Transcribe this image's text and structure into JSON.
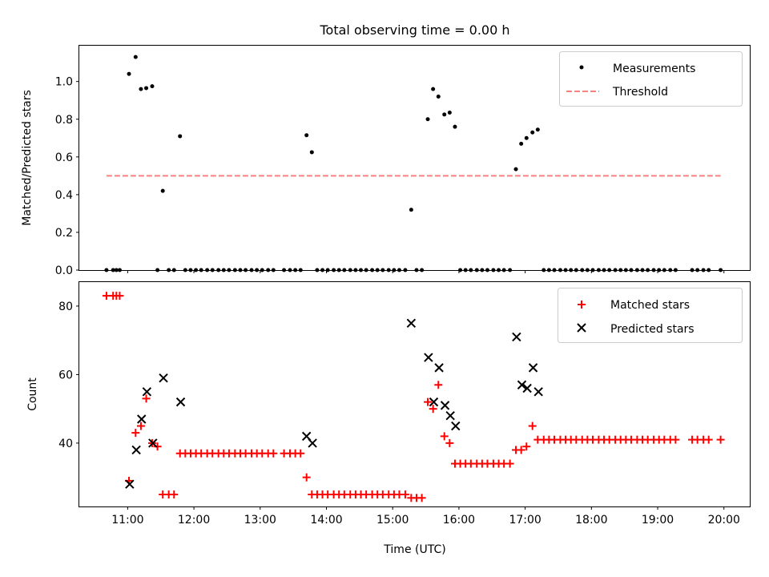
{
  "chart_data": [
    {
      "type": "scatter",
      "title": "Total observing time = 0.00 h",
      "xlabel": "",
      "ylabel": "Matched/Predicted stars",
      "ylim": [
        0,
        1.19
      ],
      "yticks": [
        0.0,
        0.2,
        0.4,
        0.6,
        0.8,
        1.0
      ],
      "ytick_labels": [
        "0.0",
        "0.2",
        "0.4",
        "0.6",
        "0.8",
        "1.0"
      ],
      "xlim": [
        10.27,
        20.39
      ],
      "xticks": [
        11,
        12,
        13,
        14,
        15,
        16,
        17,
        18,
        19,
        20
      ],
      "x_unit": "hours UTC",
      "legend_position": "top-right",
      "series": [
        {
          "name": "Measurements",
          "marker": "dot",
          "color": "#000000",
          "points": [
            [
              10.68,
              0
            ],
            [
              10.78,
              0
            ],
            [
              10.83,
              0
            ],
            [
              10.88,
              0
            ],
            [
              11.02,
              1.04
            ],
            [
              11.12,
              1.13
            ],
            [
              11.2,
              0.96
            ],
            [
              11.28,
              0.965
            ],
            [
              11.37,
              0.975
            ],
            [
              11.45,
              0
            ],
            [
              11.53,
              0.42
            ],
            [
              11.62,
              0
            ],
            [
              11.7,
              0
            ],
            [
              11.79,
              0.71
            ],
            [
              11.87,
              0
            ],
            [
              11.95,
              0
            ],
            [
              12.03,
              0
            ],
            [
              12.11,
              0
            ],
            [
              12.2,
              0
            ],
            [
              12.28,
              0
            ],
            [
              12.37,
              0
            ],
            [
              12.45,
              0
            ],
            [
              12.53,
              0
            ],
            [
              12.62,
              0
            ],
            [
              12.7,
              0
            ],
            [
              12.78,
              0
            ],
            [
              12.87,
              0
            ],
            [
              12.95,
              0
            ],
            [
              13.03,
              0
            ],
            [
              13.12,
              0
            ],
            [
              13.2,
              0
            ],
            [
              13.36,
              0
            ],
            [
              13.45,
              0
            ],
            [
              13.53,
              0
            ],
            [
              13.61,
              0
            ],
            [
              13.7,
              0.715
            ],
            [
              13.78,
              0.625
            ],
            [
              13.86,
              0
            ],
            [
              13.94,
              0
            ],
            [
              14.02,
              0
            ],
            [
              14.11,
              0
            ],
            [
              14.19,
              0
            ],
            [
              14.27,
              0
            ],
            [
              14.36,
              0
            ],
            [
              14.44,
              0
            ],
            [
              14.52,
              0
            ],
            [
              14.6,
              0
            ],
            [
              14.69,
              0
            ],
            [
              14.77,
              0
            ],
            [
              14.85,
              0
            ],
            [
              14.94,
              0
            ],
            [
              15.02,
              0
            ],
            [
              15.1,
              0
            ],
            [
              15.19,
              0
            ],
            [
              15.28,
              0.32
            ],
            [
              15.36,
              0
            ],
            [
              15.44,
              0
            ],
            [
              15.53,
              0.8
            ],
            [
              15.61,
              0.96
            ],
            [
              15.69,
              0.92
            ],
            [
              15.78,
              0.825
            ],
            [
              15.86,
              0.835
            ],
            [
              15.94,
              0.76
            ],
            [
              16.02,
              0
            ],
            [
              16.1,
              0
            ],
            [
              16.18,
              0
            ],
            [
              16.27,
              0
            ],
            [
              16.35,
              0
            ],
            [
              16.43,
              0
            ],
            [
              16.52,
              0
            ],
            [
              16.6,
              0
            ],
            [
              16.68,
              0
            ],
            [
              16.77,
              0
            ],
            [
              16.86,
              0.535
            ],
            [
              16.94,
              0.67
            ],
            [
              17.02,
              0.7
            ],
            [
              17.11,
              0.73
            ],
            [
              17.19,
              0.745
            ],
            [
              17.28,
              0
            ],
            [
              17.36,
              0
            ],
            [
              17.44,
              0
            ],
            [
              17.53,
              0
            ],
            [
              17.61,
              0
            ],
            [
              17.69,
              0
            ],
            [
              17.77,
              0
            ],
            [
              17.86,
              0
            ],
            [
              17.94,
              0
            ],
            [
              18.02,
              0
            ],
            [
              18.11,
              0
            ],
            [
              18.19,
              0
            ],
            [
              18.27,
              0
            ],
            [
              18.36,
              0
            ],
            [
              18.44,
              0
            ],
            [
              18.52,
              0
            ],
            [
              18.6,
              0
            ],
            [
              18.69,
              0
            ],
            [
              18.77,
              0
            ],
            [
              18.85,
              0
            ],
            [
              18.94,
              0
            ],
            [
              19.02,
              0
            ],
            [
              19.1,
              0
            ],
            [
              19.19,
              0
            ],
            [
              19.27,
              0
            ],
            [
              19.52,
              0
            ],
            [
              19.6,
              0
            ],
            [
              19.69,
              0
            ],
            [
              19.77,
              0
            ],
            [
              19.95,
              0
            ]
          ]
        },
        {
          "name": "Threshold",
          "line": "dashed",
          "color": "#ff7f7f",
          "x": [
            10.68,
            19.95
          ],
          "y": [
            0.5,
            0.5
          ]
        }
      ]
    },
    {
      "type": "scatter",
      "xlabel": "Time (UTC)",
      "ylabel": "Count",
      "ylim": [
        21.5,
        87
      ],
      "yticks": [
        40,
        60,
        80
      ],
      "ytick_labels": [
        "40",
        "60",
        "80"
      ],
      "xlim": [
        10.27,
        20.39
      ],
      "xticks": [
        11,
        12,
        13,
        14,
        15,
        16,
        17,
        18,
        19,
        20
      ],
      "xtick_labels": [
        "11:00",
        "12:00",
        "13:00",
        "14:00",
        "15:00",
        "16:00",
        "17:00",
        "18:00",
        "19:00",
        "20:00"
      ],
      "legend_position": "top-right",
      "series": [
        {
          "name": "Matched stars",
          "marker": "plus",
          "color": "#ff0000",
          "points": [
            [
              10.68,
              83
            ],
            [
              10.78,
              83
            ],
            [
              10.83,
              83
            ],
            [
              10.88,
              83
            ],
            [
              11.02,
              29
            ],
            [
              11.12,
              43
            ],
            [
              11.2,
              45
            ],
            [
              11.28,
              53
            ],
            [
              11.37,
              40
            ],
            [
              11.45,
              39
            ],
            [
              11.53,
              25
            ],
            [
              11.62,
              25
            ],
            [
              11.7,
              25
            ],
            [
              11.79,
              37
            ],
            [
              11.87,
              37
            ],
            [
              11.95,
              37
            ],
            [
              12.03,
              37
            ],
            [
              12.11,
              37
            ],
            [
              12.2,
              37
            ],
            [
              12.28,
              37
            ],
            [
              12.37,
              37
            ],
            [
              12.45,
              37
            ],
            [
              12.53,
              37
            ],
            [
              12.62,
              37
            ],
            [
              12.7,
              37
            ],
            [
              12.78,
              37
            ],
            [
              12.87,
              37
            ],
            [
              12.95,
              37
            ],
            [
              13.03,
              37
            ],
            [
              13.12,
              37
            ],
            [
              13.2,
              37
            ],
            [
              13.36,
              37
            ],
            [
              13.45,
              37
            ],
            [
              13.53,
              37
            ],
            [
              13.61,
              37
            ],
            [
              13.7,
              30
            ],
            [
              13.78,
              25
            ],
            [
              13.86,
              25
            ],
            [
              13.94,
              25
            ],
            [
              14.02,
              25
            ],
            [
              14.11,
              25
            ],
            [
              14.19,
              25
            ],
            [
              14.27,
              25
            ],
            [
              14.36,
              25
            ],
            [
              14.44,
              25
            ],
            [
              14.52,
              25
            ],
            [
              14.6,
              25
            ],
            [
              14.69,
              25
            ],
            [
              14.77,
              25
            ],
            [
              14.85,
              25
            ],
            [
              14.94,
              25
            ],
            [
              15.02,
              25
            ],
            [
              15.1,
              25
            ],
            [
              15.19,
              25
            ],
            [
              15.28,
              24
            ],
            [
              15.36,
              24
            ],
            [
              15.44,
              24
            ],
            [
              15.53,
              52
            ],
            [
              15.61,
              50
            ],
            [
              15.69,
              57
            ],
            [
              15.78,
              42
            ],
            [
              15.86,
              40
            ],
            [
              15.94,
              34
            ],
            [
              16.02,
              34
            ],
            [
              16.1,
              34
            ],
            [
              16.18,
              34
            ],
            [
              16.27,
              34
            ],
            [
              16.35,
              34
            ],
            [
              16.43,
              34
            ],
            [
              16.52,
              34
            ],
            [
              16.6,
              34
            ],
            [
              16.68,
              34
            ],
            [
              16.77,
              34
            ],
            [
              16.86,
              38
            ],
            [
              16.94,
              38
            ],
            [
              17.02,
              39
            ],
            [
              17.11,
              45
            ],
            [
              17.19,
              41
            ],
            [
              17.28,
              41
            ],
            [
              17.36,
              41
            ],
            [
              17.44,
              41
            ],
            [
              17.53,
              41
            ],
            [
              17.61,
              41
            ],
            [
              17.69,
              41
            ],
            [
              17.77,
              41
            ],
            [
              17.86,
              41
            ],
            [
              17.94,
              41
            ],
            [
              18.02,
              41
            ],
            [
              18.11,
              41
            ],
            [
              18.19,
              41
            ],
            [
              18.27,
              41
            ],
            [
              18.36,
              41
            ],
            [
              18.44,
              41
            ],
            [
              18.52,
              41
            ],
            [
              18.6,
              41
            ],
            [
              18.69,
              41
            ],
            [
              18.77,
              41
            ],
            [
              18.85,
              41
            ],
            [
              18.94,
              41
            ],
            [
              19.02,
              41
            ],
            [
              19.1,
              41
            ],
            [
              19.19,
              41
            ],
            [
              19.27,
              41
            ],
            [
              19.52,
              41
            ],
            [
              19.6,
              41
            ],
            [
              19.69,
              41
            ],
            [
              19.77,
              41
            ],
            [
              19.95,
              41
            ]
          ]
        },
        {
          "name": "Predicted stars",
          "marker": "x",
          "color": "#000000",
          "points": [
            [
              11.03,
              28
            ],
            [
              11.13,
              38
            ],
            [
              11.21,
              47
            ],
            [
              11.29,
              55
            ],
            [
              11.38,
              40
            ],
            [
              11.54,
              59
            ],
            [
              11.8,
              52
            ],
            [
              13.7,
              42
            ],
            [
              13.79,
              40
            ],
            [
              15.28,
              75
            ],
            [
              15.54,
              65
            ],
            [
              15.62,
              52
            ],
            [
              15.7,
              62
            ],
            [
              15.79,
              51
            ],
            [
              15.87,
              48
            ],
            [
              15.95,
              45
            ],
            [
              16.87,
              71
            ],
            [
              16.95,
              57
            ],
            [
              17.03,
              56
            ],
            [
              17.12,
              62
            ],
            [
              17.2,
              55
            ]
          ]
        }
      ]
    }
  ]
}
